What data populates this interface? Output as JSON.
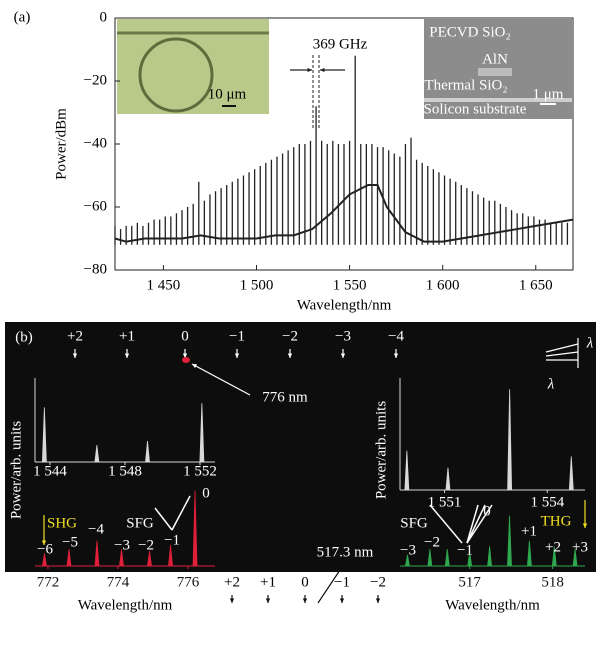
{
  "chart_data": [
    {
      "type": "comb",
      "xlabel": "Wavelength/nm",
      "ylabel": "Power/dBm",
      "xlim": [
        1424,
        1670
      ],
      "ylim": [
        -80,
        0
      ],
      "xticks": [
        {
          "value": 1450,
          "label": "1 450"
        },
        {
          "value": 1500,
          "label": "1 500"
        },
        {
          "value": 1550,
          "label": "1 550"
        },
        {
          "value": 1600,
          "label": "1 600"
        },
        {
          "value": 1650,
          "label": "1 650"
        }
      ],
      "yticks": [
        0,
        {
          "value": -20,
          "label": "−20"
        },
        {
          "value": -40,
          "label": "−40"
        },
        {
          "value": -60,
          "label": "−60"
        },
        {
          "value": -80,
          "label": "−80"
        }
      ],
      "annotations": [
        "(a)",
        "369 GHz",
        "10 μm",
        "PECVD SiO₂",
        "AlN",
        "Thermal SiO₂",
        "Solicon substrate",
        "1 μm"
      ],
      "series": [
        {
          "color": "#222222",
          "x": [
            1424,
            1427,
            1430,
            1433,
            1436,
            1439,
            1442,
            1445,
            1448,
            1451,
            1454,
            1457,
            1460,
            1463,
            1466,
            1469,
            1472,
            1475,
            1478,
            1481,
            1484,
            1487,
            1490,
            1493,
            1496,
            1499,
            1502,
            1505,
            1508,
            1511,
            1514,
            1517,
            1520,
            1523,
            1526,
            1529,
            1532,
            1535,
            1538,
            1541,
            1544,
            1547,
            1550,
            1553,
            1556,
            1559,
            1562,
            1565,
            1568,
            1571,
            1574,
            1577,
            1580,
            1583,
            1586,
            1589,
            1592,
            1595,
            1598,
            1601,
            1604,
            1607,
            1610,
            1613,
            1616,
            1619,
            1622,
            1625,
            1628,
            1631,
            1634,
            1637,
            1640,
            1643,
            1646,
            1649,
            1652,
            1655,
            1658,
            1661,
            1664,
            1667
          ],
          "values": [
            -66,
            -67,
            -66,
            -66,
            -65,
            -66,
            -65,
            -64,
            -64,
            -63,
            -63,
            -62,
            -61,
            -60,
            -59,
            -52,
            -58,
            -56,
            -55,
            -54,
            -53,
            -52,
            -51,
            -50,
            -49,
            -48,
            -47,
            -46,
            -45,
            -44,
            -43,
            -42,
            -41,
            -40,
            -40,
            -39,
            -28,
            -39,
            -40,
            -39,
            -40,
            -40,
            -39,
            -12,
            -40,
            -40,
            -40,
            -41,
            -41,
            -42,
            -43,
            -44,
            -40,
            -38,
            -45,
            -46,
            -47,
            -48,
            -49,
            -50,
            -51,
            -52,
            -53,
            -54,
            -55,
            -56,
            -57,
            -58,
            -58,
            -59,
            -60,
            -61,
            -62,
            -62,
            -63,
            -63,
            -64,
            -64,
            -65,
            -65,
            -65,
            -65
          ]
        },
        {
          "color": "#222222",
          "x": [
            1424,
            1430,
            1440,
            1450,
            1460,
            1470,
            1480,
            1490,
            1500,
            1510,
            1520,
            1530,
            1540,
            1550,
            1560,
            1565,
            1570,
            1580,
            1590,
            1600,
            1610,
            1620,
            1630,
            1640,
            1650,
            1660,
            1670
          ],
          "values": [
            -70,
            -71,
            -70,
            -70,
            -70,
            -69,
            -70,
            -70,
            -70,
            -69,
            -69,
            -67,
            -62,
            -56,
            -53,
            -53,
            -60,
            -68,
            -71,
            -71,
            -70,
            -69,
            -68,
            -67,
            -66,
            -65,
            -64
          ]
        }
      ]
    },
    {
      "type": "spectrum",
      "ylabel": "Power/arb. units",
      "color": "#d8d8d8",
      "xlim": [
        1543.2,
        1552.8
      ],
      "ylim": [
        0,
        1
      ],
      "xticks": [
        {
          "value": 1544,
          "label": "1 544"
        },
        {
          "value": 1548,
          "label": "1 548"
        },
        {
          "value": 1552,
          "label": "1 552"
        }
      ],
      "x": [
        1543.7,
        1546.5,
        1549.2,
        1552.1
      ],
      "values": [
        0.65,
        0.2,
        0.25,
        0.7
      ]
    },
    {
      "type": "spectrum",
      "xlabel": "Wavelength/nm",
      "color": "#e0203a",
      "xlim": [
        771.63,
        776.77
      ],
      "ylim": [
        0,
        1
      ],
      "xticks": [
        772,
        774,
        776
      ],
      "x": [
        771.9,
        772.6,
        773.4,
        774.1,
        774.9,
        775.5,
        776.2
      ],
      "values": [
        0.15,
        0.2,
        0.3,
        0.2,
        0.18,
        0.25,
        0.9
      ],
      "annotations": [
        "SHG",
        "SFG"
      ],
      "peak_labels": [
        "−6",
        "−5",
        "−4",
        "−3",
        "−2",
        "−1",
        "0"
      ]
    },
    {
      "type": "spectrum",
      "ylabel": "Power/arb. units",
      "color": "#d8d8d8",
      "xlim": [
        1549.7,
        1555.1
      ],
      "ylim": [
        0,
        1
      ],
      "xticks": [
        {
          "value": 1551,
          "label": "1 551"
        },
        {
          "value": 1554,
          "label": "1 554"
        }
      ],
      "x": [
        1549.9,
        1551.1,
        1552.9,
        1554.7
      ],
      "values": [
        0.35,
        0.2,
        0.9,
        0.3
      ]
    },
    {
      "type": "spectrum",
      "xlabel": "Wavelength/nm",
      "color": "#2fa84f",
      "xlim": [
        516.16,
        518.39
      ],
      "ylim": [
        0,
        1
      ],
      "xticks": [
        517,
        518
      ],
      "x": [
        516.25,
        516.52,
        516.73,
        517.0,
        517.24,
        517.48,
        517.72,
        518.02,
        518.27
      ],
      "values": [
        0.2,
        0.3,
        0.3,
        0.25,
        0.35,
        0.9,
        0.45,
        0.35,
        0.3
      ],
      "annotations": [
        "SFG",
        "THG"
      ],
      "peak_labels": [
        "−3",
        "−2",
        "−1",
        "0",
        "+1",
        "+2",
        "+3"
      ]
    }
  ],
  "panel_b": {
    "label": "(b)",
    "top_orders": [
      "+2",
      "+1",
      "0",
      "−1",
      "−2",
      "−3",
      "−4"
    ],
    "pump_label": "776 nm",
    "third_orders": [
      "+2",
      "+1",
      "0",
      "−1",
      "−2"
    ],
    "third_label": "517.3 nm",
    "corner": [
      "λ",
      "λ"
    ]
  }
}
